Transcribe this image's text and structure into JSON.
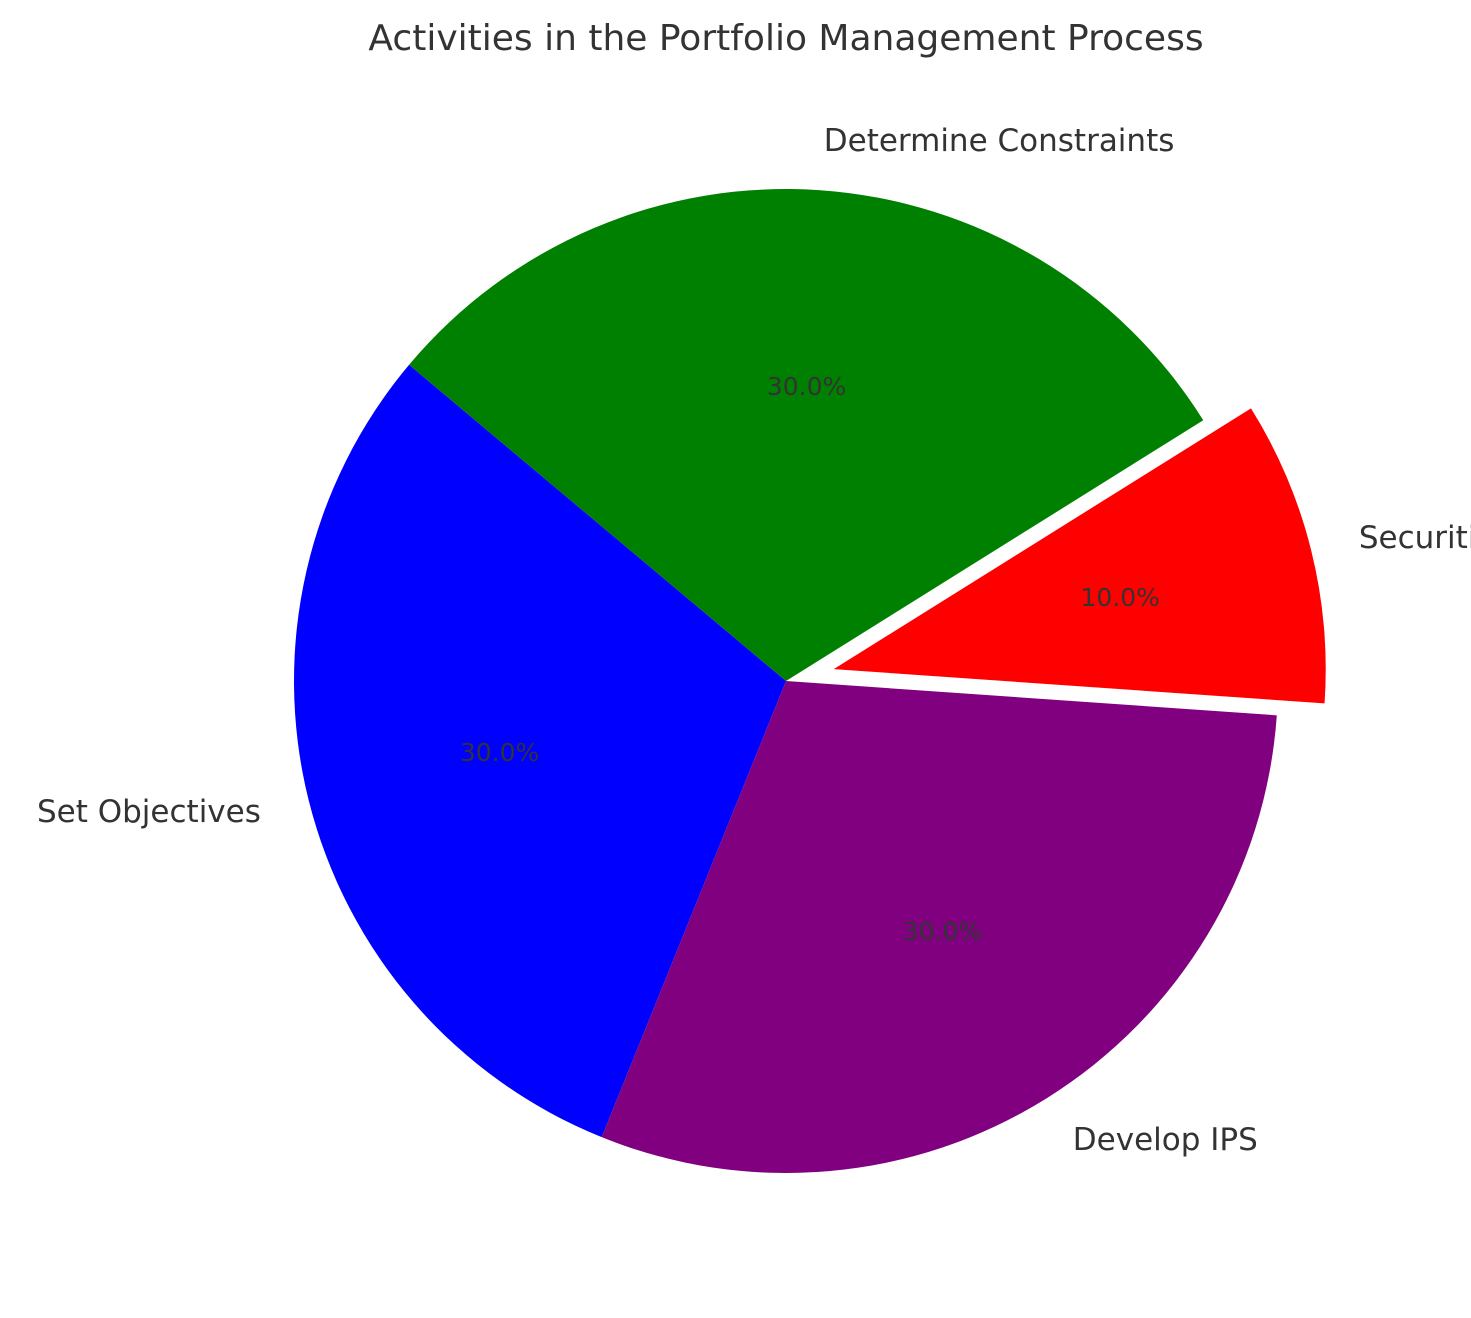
{
  "chart_data": {
    "type": "pie",
    "title": "Activities in the Portfolio Management Process",
    "categories": [
      "Set Objectives",
      "Develop IPS",
      "Securities Analysis",
      "Determine Constraints"
    ],
    "values": [
      30,
      30,
      10,
      30
    ],
    "percent_labels": [
      "30.0%",
      "30.0%",
      "10.0%",
      "30.0%"
    ],
    "colors": [
      "#0000ff",
      "#800080",
      "#ff0000",
      "#008000"
    ],
    "explode": [
      0,
      0,
      0.1,
      0
    ],
    "start_angle": 140,
    "counterclockwise": true,
    "legend": "none"
  }
}
